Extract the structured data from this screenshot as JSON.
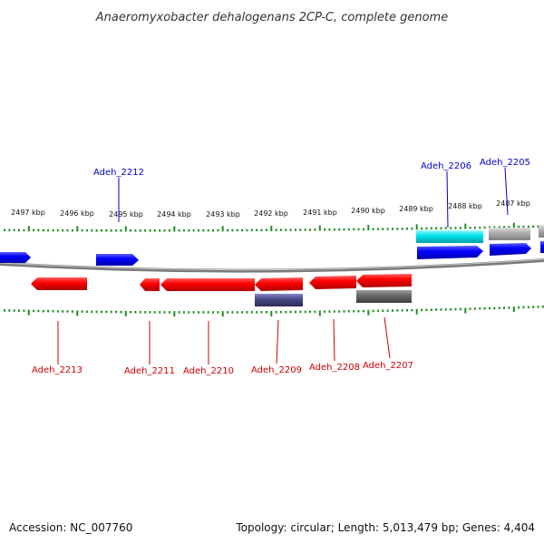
{
  "title": "Anaeromyxobacter dehalogenans 2CP-C, complete genome",
  "footer": {
    "accession": "Accession: NC_007760",
    "summary": "Topology: circular; Length: 5,013,479 bp; Genes: 4,404"
  },
  "ruler": {
    "tick_labels": [
      "2497 kbp",
      "2496 kbp",
      "2495 kbp",
      "2494 kbp",
      "2493 kbp",
      "2492 kbp",
      "2491 kbp",
      "2490 kbp",
      "2489 kbp",
      "2488 kbp",
      "2487 kbp"
    ]
  },
  "colors": {
    "forward_gene": "#0000ff",
    "reverse_gene": "#ff0000",
    "forward_label": "#0000cc",
    "reverse_label": "#cc0000",
    "rna": "#00e5ee",
    "pseudo": "#a0a0a0",
    "dark_feature": "#4a4a8a",
    "gray_feature": "#707070",
    "backbone": "#888888",
    "ticks": "#228b22"
  },
  "genes": {
    "forward": [
      {
        "label": "Adeh_2212"
      },
      {
        "label": "Adeh_2206"
      },
      {
        "label": "Adeh_2205"
      }
    ],
    "reverse": [
      {
        "label": "Adeh_2213"
      },
      {
        "label": "Adeh_2211"
      },
      {
        "label": "Adeh_2210"
      },
      {
        "label": "Adeh_2209"
      },
      {
        "label": "Adeh_2208"
      },
      {
        "label": "Adeh_2207"
      }
    ]
  }
}
